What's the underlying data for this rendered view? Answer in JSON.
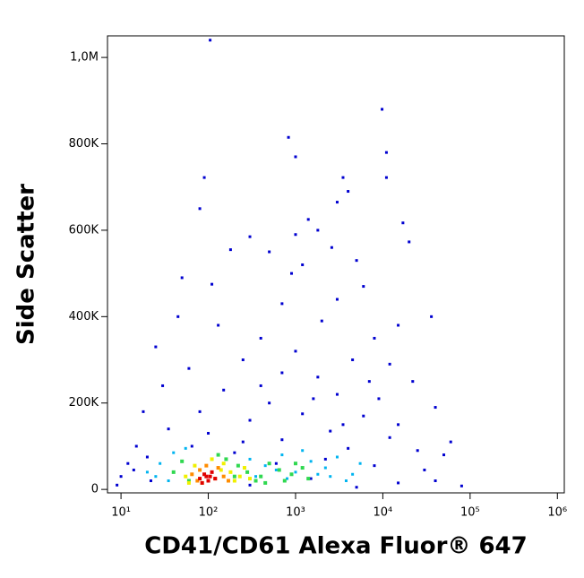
{
  "chart_data": {
    "type": "scatter",
    "x_label": "CD41/CD61 Alexa Fluor® 647",
    "y_label": "Side Scatter",
    "xscale": "log",
    "xlim": [
      7,
      1200000
    ],
    "xticks": [
      {
        "value": 10,
        "label": "10¹"
      },
      {
        "value": 100,
        "label": "10²"
      },
      {
        "value": 1000,
        "label": "10³"
      },
      {
        "value": 10000,
        "label": "10⁴"
      },
      {
        "value": 100000,
        "label": "10⁵"
      },
      {
        "value": 1000000,
        "label": "10⁶"
      }
    ],
    "ylim": [
      -8000,
      1050000
    ],
    "yticks": [
      0,
      {
        "value": 200000,
        "label": "200K"
      },
      {
        "value": 400000,
        "label": "400K"
      },
      {
        "value": 600000,
        "label": "600K"
      },
      {
        "value": 800000,
        "label": "800K"
      },
      {
        "value": 1000000,
        "label": "1,0M"
      }
    ],
    "series": [
      {
        "color": "#0000d0",
        "x": [
          105,
          9800,
          830,
          1000,
          11000,
          3500,
          90,
          11000,
          4000,
          3000,
          80,
          1400,
          17000,
          1000,
          1800,
          300,
          20000,
          2600,
          180,
          500,
          1200,
          900,
          5000,
          50,
          6000,
          110,
          3000,
          700,
          36000,
          45,
          2000,
          15000,
          130,
          400,
          8000,
          25,
          1000,
          250,
          4500,
          12000,
          60,
          700,
          1800,
          22000,
          30,
          150,
          3000,
          9000,
          500,
          40000,
          18,
          80,
          1200,
          6000,
          300,
          15000,
          35,
          2500,
          100,
          12000,
          700,
          60000,
          15,
          4000,
          25000,
          200,
          50000,
          12,
          8000,
          30000,
          10,
          1500,
          22,
          40000,
          9,
          5000,
          80000,
          300,
          15000,
          14,
          2200,
          600,
          20,
          3500,
          7000,
          1600,
          400,
          250,
          65
        ],
        "values": [
          1040000,
          880000,
          815000,
          770000,
          780000,
          722000,
          722000,
          722000,
          690000,
          665000,
          650000,
          625000,
          617000,
          590000,
          600000,
          585000,
          573000,
          560000,
          555000,
          550000,
          520000,
          500000,
          530000,
          490000,
          470000,
          475000,
          440000,
          430000,
          400000,
          400000,
          390000,
          380000,
          380000,
          350000,
          350000,
          330000,
          320000,
          300000,
          300000,
          290000,
          280000,
          270000,
          260000,
          250000,
          240000,
          230000,
          220000,
          210000,
          200000,
          190000,
          180000,
          180000,
          175000,
          170000,
          160000,
          150000,
          140000,
          135000,
          130000,
          120000,
          115000,
          110000,
          100000,
          95000,
          90000,
          85000,
          80000,
          60000,
          55000,
          45000,
          30000,
          25000,
          20000,
          20000,
          10000,
          5000,
          8000,
          10000,
          15000,
          45000,
          70000,
          60000,
          75000,
          150000,
          250000,
          210000,
          240000,
          110000,
          100000
        ]
      },
      {
        "color": "#00b4f0",
        "x": [
          20,
          28,
          40,
          55,
          300,
          450,
          700,
          1000,
          1500,
          2200,
          3000,
          4500,
          800,
          1200,
          350,
          600,
          2500,
          5500,
          35,
          25,
          3800,
          1800
        ],
        "values": [
          40000,
          60000,
          85000,
          95000,
          70000,
          55000,
          80000,
          40000,
          65000,
          50000,
          75000,
          35000,
          25000,
          90000,
          30000,
          45000,
          30000,
          60000,
          20000,
          30000,
          20000,
          35000
        ]
      },
      {
        "color": "#30d850",
        "x": [
          40,
          50,
          160,
          220,
          280,
          400,
          500,
          650,
          900,
          1200,
          1400,
          350,
          200,
          60,
          750,
          1000,
          130,
          450
        ],
        "values": [
          40000,
          65000,
          70000,
          55000,
          40000,
          30000,
          60000,
          45000,
          35000,
          50000,
          25000,
          20000,
          30000,
          20000,
          20000,
          60000,
          80000,
          15000
        ]
      },
      {
        "color": "#f0f000",
        "x": [
          55,
          70,
          150,
          180,
          230,
          260,
          110,
          60,
          200,
          85,
          300,
          140
        ],
        "values": [
          30000,
          55000,
          60000,
          40000,
          30000,
          50000,
          70000,
          15000,
          20000,
          15000,
          25000,
          45000
        ]
      },
      {
        "color": "#ff8c00",
        "x": [
          65,
          80,
          95,
          130,
          150,
          170,
          75,
          120
        ],
        "values": [
          35000,
          45000,
          55000,
          50000,
          30000,
          20000,
          20000,
          25000
        ]
      },
      {
        "color": "#e00000",
        "x": [
          80,
          90,
          100,
          110,
          120,
          95,
          85,
          105
        ],
        "values": [
          25000,
          35000,
          20000,
          40000,
          25000,
          30000,
          15000,
          30000
        ]
      }
    ]
  }
}
